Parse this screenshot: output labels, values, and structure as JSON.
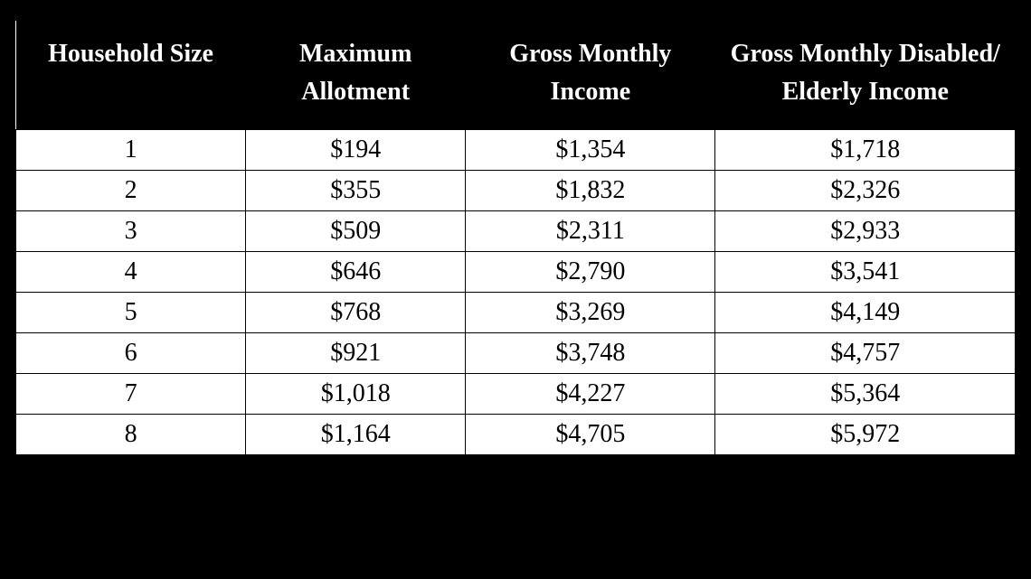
{
  "table": {
    "type": "table",
    "background_color": "#000000",
    "table_bg": "#ffffff",
    "border_color": "#000000",
    "header_bg": "#000000",
    "header_fg": "#ffffff",
    "cell_fg": "#000000",
    "header_fontsize": 28,
    "cell_fontsize": 28,
    "font_family": "Georgia, Times New Roman, serif",
    "column_widths_pct": [
      23,
      22,
      25,
      30
    ],
    "columns": [
      "Household Size",
      "Maximum Allotment",
      "Gross Monthly Income",
      "Gross Monthly Disabled/ Elderly Income"
    ],
    "rows": [
      [
        "1",
        "$194",
        "$1,354",
        "$1,718"
      ],
      [
        "2",
        "$355",
        "$1,832",
        "$2,326"
      ],
      [
        "3",
        "$509",
        "$2,311",
        "$2,933"
      ],
      [
        "4",
        "$646",
        "$2,790",
        "$3,541"
      ],
      [
        "5",
        "$768",
        "$3,269",
        "$4,149"
      ],
      [
        "6",
        "$921",
        "$3,748",
        "$4,757"
      ],
      [
        "7",
        "$1,018",
        "$4,227",
        "$5,364"
      ],
      [
        "8",
        "$1,164",
        "$4,705",
        "$5,972"
      ]
    ]
  }
}
